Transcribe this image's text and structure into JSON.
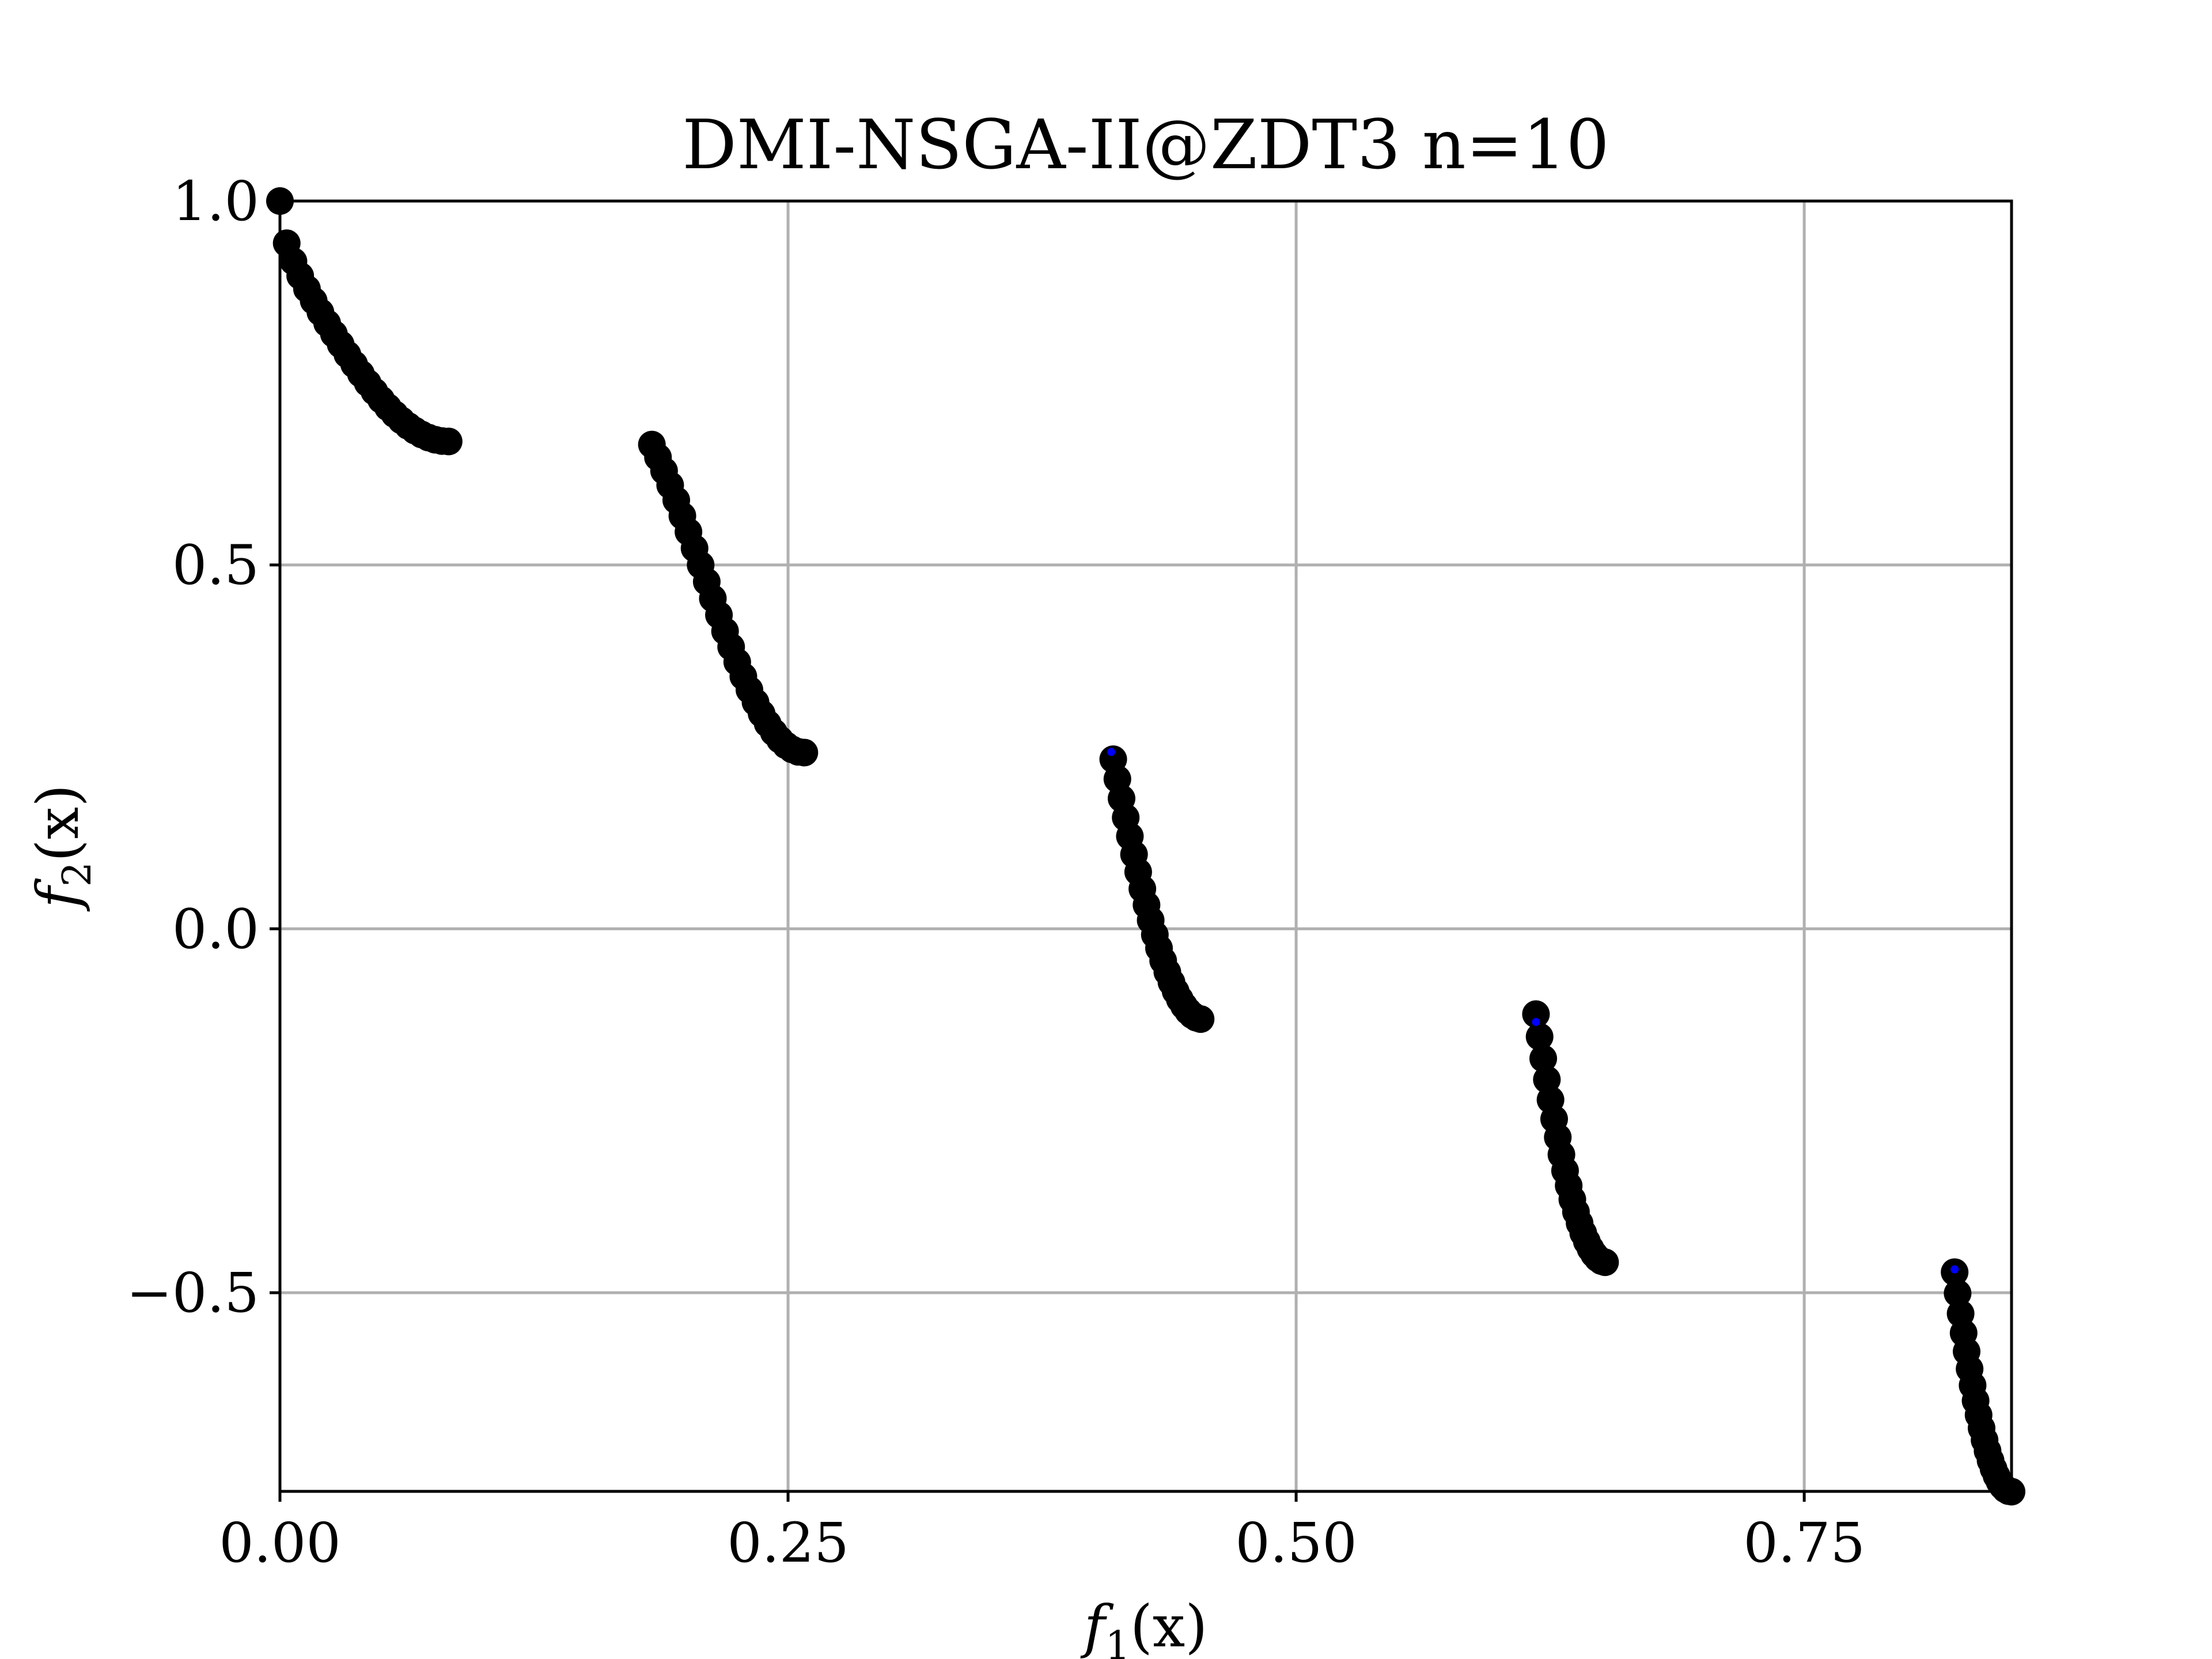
{
  "chart_data": {
    "type": "scatter",
    "title": "DMI-NSGA-II@ZDT3 n=10",
    "xlabel": "f",
    "xlabel_sub": "1",
    "xlabel_arg": "(x)",
    "ylabel": "f",
    "ylabel_sub": "2",
    "ylabel_arg": "(x)",
    "xlim": [
      0.0,
      0.852
    ],
    "ylim": [
      -0.773,
      1.0
    ],
    "xticks": [
      0.0,
      0.25,
      0.5,
      0.75
    ],
    "xtick_labels": [
      "0.00",
      "0.25",
      "0.50",
      "0.75"
    ],
    "yticks": [
      1.0,
      0.5,
      0.0,
      -0.5
    ],
    "ytick_labels": [
      "1.0",
      "0.5",
      "0.0",
      "−0.5"
    ],
    "grid": true,
    "series": [
      {
        "color": "#000000",
        "marker": "large-circle",
        "segments": [
          {
            "x0": 0.0,
            "x1": 0.083,
            "n": 26
          },
          {
            "x0": 0.183,
            "x1": 0.258,
            "n": 26
          },
          {
            "x0": 0.41,
            "x1": 0.453,
            "n": 22
          },
          {
            "x0": 0.618,
            "x1": 0.652,
            "n": 20
          },
          {
            "x0": 0.824,
            "x1": 0.852,
            "n": 20
          }
        ]
      },
      {
        "color": "#0000ff",
        "marker": "small-dot",
        "points": [
          [
            0.409,
            0.243
          ],
          [
            0.618,
            -0.128
          ],
          [
            0.824,
            -0.468
          ]
        ]
      }
    ]
  }
}
